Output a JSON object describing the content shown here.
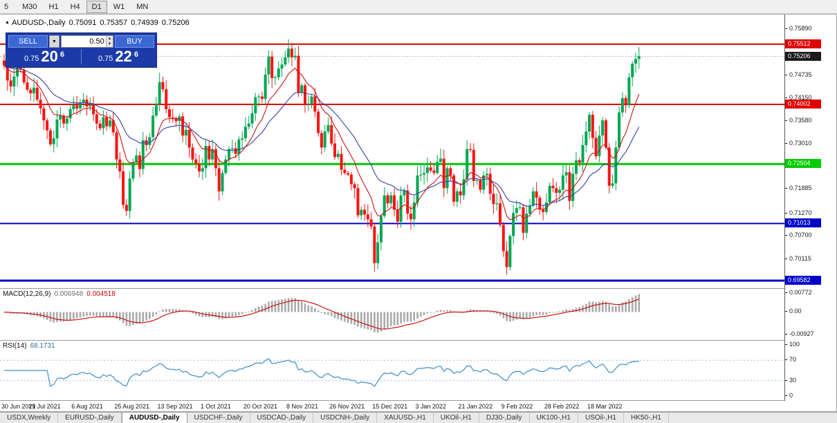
{
  "toolbar": {
    "timeframes": [
      "5",
      "M30",
      "H1",
      "H4",
      "D1",
      "W1",
      "MN"
    ],
    "active": "D1"
  },
  "chart": {
    "title": {
      "symbol_label": "AUDUSD-,Daily",
      "o": "0.75091",
      "h": "0.75357",
      "l": "0.74939",
      "c": "0.75206"
    },
    "trade_panel": {
      "sell_label": "SELL",
      "buy_label": "BUY",
      "volume": "0.50",
      "sell_price_small": "0.75",
      "sell_price_big": "20",
      "sell_price_sup": "6",
      "buy_price_small": "0.75",
      "buy_price_big": "22",
      "buy_price_sup": "6"
    }
  },
  "chart_data": {
    "type": "candlestick",
    "symbol": "AUDUSD",
    "timeframe": "Daily",
    "title": "AUDUSD-,Daily",
    "x_labels": [
      "30 Jun 2021",
      "19 Jul 2021",
      "6 Aug 2021",
      "25 Aug 2021",
      "13 Sep 2021",
      "1 Oct 2021",
      "20 Oct 2021",
      "8 Nov 2021",
      "26 Nov 2021",
      "15 Dec 2021",
      "3 Jan 2022",
      "21 Jan 2022",
      "9 Feb 2022",
      "28 Feb 2022",
      "18 Mar 2022"
    ],
    "label_interval": 13,
    "closes": [
      0.7498,
      0.746,
      0.7445,
      0.747,
      0.7492,
      0.7487,
      0.7455,
      0.7437,
      0.7428,
      0.7442,
      0.7412,
      0.739,
      0.736,
      0.7335,
      0.73,
      0.7315,
      0.7362,
      0.7372,
      0.7352,
      0.7365,
      0.7388,
      0.7398,
      0.739,
      0.7405,
      0.7412,
      0.7395,
      0.74,
      0.7375,
      0.7352,
      0.734,
      0.7368,
      0.7345,
      0.736,
      0.733,
      0.7262,
      0.7232,
      0.7148,
      0.7133,
      0.7214,
      0.7255,
      0.7272,
      0.7238,
      0.731,
      0.7298,
      0.7318,
      0.7372,
      0.7402,
      0.7456,
      0.7438,
      0.7388,
      0.7368,
      0.7366,
      0.7358,
      0.737,
      0.7322,
      0.7336,
      0.7292,
      0.7262,
      0.7252,
      0.7232,
      0.724,
      0.7296,
      0.7262,
      0.7288,
      0.724,
      0.7182,
      0.7228,
      0.7262,
      0.7288,
      0.729,
      0.7276,
      0.7312,
      0.7315,
      0.7344,
      0.7352,
      0.7378,
      0.7418,
      0.742,
      0.7414,
      0.7475,
      0.752,
      0.7466,
      0.7468,
      0.749,
      0.75,
      0.7518,
      0.754,
      0.7518,
      0.7522,
      0.743,
      0.7448,
      0.74,
      0.7402,
      0.742,
      0.7382,
      0.7328,
      0.7292,
      0.7332,
      0.7348,
      0.7302,
      0.7268,
      0.7276,
      0.7236,
      0.7228,
      0.7224,
      0.72,
      0.719,
      0.7122,
      0.7136,
      0.7124,
      0.7112,
      0.7094,
      0.7002,
      0.7054,
      0.712,
      0.7172,
      0.7152,
      0.7172,
      0.7136,
      0.7106,
      0.7172,
      0.7184,
      0.7126,
      0.7112,
      0.7154,
      0.7222,
      0.7224,
      0.7228,
      0.7242,
      0.7234,
      0.7228,
      0.7256,
      0.7264,
      0.719,
      0.724,
      0.7222,
      0.7156,
      0.7182,
      0.7172,
      0.7212,
      0.7288,
      0.7286,
      0.7208,
      0.721,
      0.7186,
      0.7222,
      0.7226,
      0.7176,
      0.715,
      0.7152,
      0.7098,
      0.7032,
      0.6992,
      0.707,
      0.7128,
      0.714,
      0.7142,
      0.7078,
      0.7126,
      0.7146,
      0.7182,
      0.7166,
      0.7136,
      0.713,
      0.7154,
      0.7196,
      0.719,
      0.7178,
      0.7186,
      0.7222,
      0.723,
      0.7158,
      0.7226,
      0.726,
      0.7254,
      0.7298,
      0.7332,
      0.7374,
      0.7316,
      0.727,
      0.7322,
      0.736,
      0.7292,
      0.7196,
      0.7202,
      0.7292,
      0.738,
      0.7416,
      0.7398,
      0.7468,
      0.7502,
      0.7514,
      0.7521
    ],
    "price_axis": {
      "min": 0.6946,
      "max": 0.7622,
      "ticks": [
        "0.75890",
        "0.74735",
        "0.74150",
        "0.73580",
        "0.73010",
        "0.71885",
        "0.71270",
        "0.70700",
        "0.70115"
      ]
    },
    "levels": [
      {
        "value": 0.75512,
        "label": "0.75512",
        "color": "#e00000",
        "width": 2
      },
      {
        "value": 0.74002,
        "label": "0.74002",
        "color": "#e00000",
        "width": 2
      },
      {
        "value": 0.72504,
        "label": "0.72504",
        "color": "#00cc00",
        "width": 3
      },
      {
        "value": 0.71013,
        "label": "0.71013",
        "color": "#0000c8",
        "width": 2
      },
      {
        "value": 0.69582,
        "label": "0.69582",
        "color": "#0000c8",
        "width": 3
      }
    ],
    "current_price": {
      "value": 0.75206,
      "label": "0.75206"
    },
    "ma_periods": {
      "fast": 10,
      "slow": 24
    },
    "macd": {
      "label": "MACD(12,26,9)",
      "value": "0.006948",
      "signal": "0.004518",
      "params": [
        12,
        26,
        9
      ],
      "ticks": [
        "0.00772",
        "0.00",
        "-0.00927"
      ],
      "scale_top": 0.0095,
      "scale_bottom": -0.0115
    },
    "rsi": {
      "label": "RSI(14)",
      "value": "68.1731",
      "period": 14,
      "ticks": [
        "100",
        "70",
        "30",
        "0"
      ],
      "levels": [
        70,
        30
      ]
    },
    "colors": {
      "up": "#00a651",
      "down": "#fe1212",
      "ma_fast": "#c81414",
      "ma_slow": "#2f3fa8",
      "hist": "#a9a9a9",
      "signal": "#c80000",
      "rsi": "#3c8cc8",
      "rsi_level": "#9fbfdf",
      "current": "#1a1a1a",
      "bid_line": "#b8b8b8"
    }
  },
  "tabs": {
    "items": [
      "USDX,Weekly",
      "EURUSD-,Daily",
      "AUDUSD-,Daily",
      "USDCHF-,Daily",
      "USDCAD-,Daily",
      "USDCNH-,Daily",
      "XAUUSD-,H1",
      "UKOil-,H1",
      "DJ30-,Daily",
      "UK100-,H1",
      "USOil-,H1",
      "HK50-,H1"
    ],
    "active_index": 2
  }
}
